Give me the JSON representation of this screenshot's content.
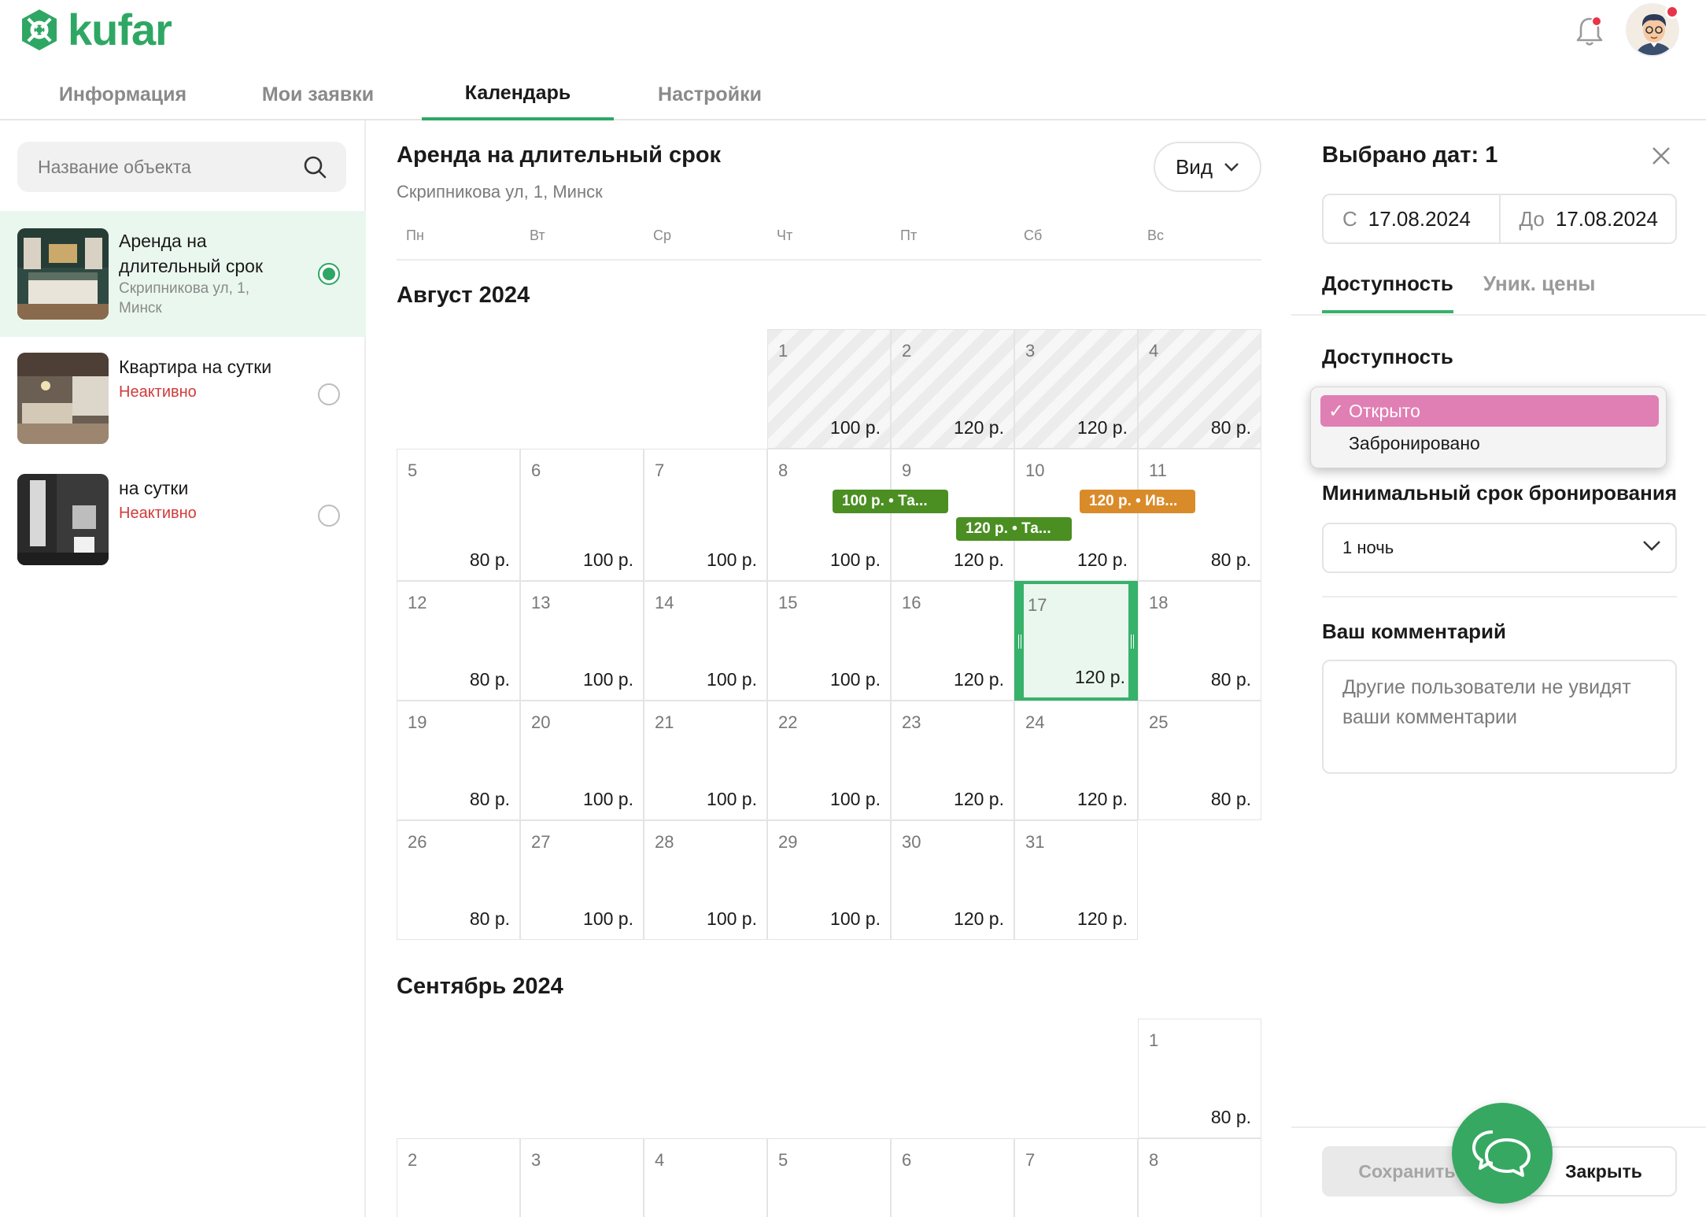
{
  "header": {
    "logo": "kufar",
    "tabs": [
      {
        "label": "Информация"
      },
      {
        "label": "Мои заявки"
      },
      {
        "label": "Календарь",
        "active": true
      },
      {
        "label": "Настройки"
      }
    ]
  },
  "sidebar": {
    "search_placeholder": "Название объекта",
    "objects": [
      {
        "title": "Аренда на длительный срок",
        "address": "Скрипникова ул, 1, Минск",
        "selected": true
      },
      {
        "title": "Квартира на сутки",
        "status": "Неактивно",
        "selected": false
      },
      {
        "title": "на сутки",
        "status": "Неактивно",
        "selected": false
      }
    ]
  },
  "calendar": {
    "object_title": "Аренда на длительный срок",
    "object_address": "Скрипникова ул, 1, Минск",
    "view_label": "Вид",
    "weekdays": [
      "Пн",
      "Вт",
      "Ср",
      "Чт",
      "Пт",
      "Сб",
      "Вс"
    ],
    "months": [
      {
        "title": "Август 2024",
        "start_col": 3,
        "days": [
          {
            "d": "1",
            "p": "100 р.",
            "past": true
          },
          {
            "d": "2",
            "p": "120 р.",
            "past": true
          },
          {
            "d": "3",
            "p": "120 р.",
            "past": true
          },
          {
            "d": "4",
            "p": "80 р.",
            "past": true
          },
          {
            "d": "5",
            "p": "80 р."
          },
          {
            "d": "6",
            "p": "100 р."
          },
          {
            "d": "7",
            "p": "100 р."
          },
          {
            "d": "8",
            "p": "100 р."
          },
          {
            "d": "9",
            "p": "120 р."
          },
          {
            "d": "10",
            "p": "120 р."
          },
          {
            "d": "11",
            "p": "80 р."
          },
          {
            "d": "12",
            "p": "80 р."
          },
          {
            "d": "13",
            "p": "100 р."
          },
          {
            "d": "14",
            "p": "100 р."
          },
          {
            "d": "15",
            "p": "100 р."
          },
          {
            "d": "16",
            "p": "120 р."
          },
          {
            "d": "17",
            "p": "120 р.",
            "picked": true
          },
          {
            "d": "18",
            "p": "80 р."
          },
          {
            "d": "19",
            "p": "80 р."
          },
          {
            "d": "20",
            "p": "100 р."
          },
          {
            "d": "21",
            "p": "100 р."
          },
          {
            "d": "22",
            "p": "100 р."
          },
          {
            "d": "23",
            "p": "120 р."
          },
          {
            "d": "24",
            "p": "120 р."
          },
          {
            "d": "25",
            "p": "80 р."
          },
          {
            "d": "26",
            "p": "80 р."
          },
          {
            "d": "27",
            "p": "100 р."
          },
          {
            "d": "28",
            "p": "100 р."
          },
          {
            "d": "29",
            "p": "100 р."
          },
          {
            "d": "30",
            "p": "120 р."
          },
          {
            "d": "31",
            "p": "120 р."
          }
        ],
        "bookings": [
          {
            "label": "100 р. • Та...",
            "color": "#4b8f23"
          },
          {
            "label": "120 р. • Та...",
            "color": "#4b8f23"
          },
          {
            "label": "120 р. • Ив...",
            "color": "#d98b2a"
          }
        ]
      },
      {
        "title": "Сентябрь 2024",
        "start_col": 6,
        "days": [
          {
            "d": "1",
            "p": "80 р."
          },
          {
            "d": "2",
            "p": ""
          },
          {
            "d": "3",
            "p": ""
          },
          {
            "d": "4",
            "p": ""
          },
          {
            "d": "5",
            "p": ""
          },
          {
            "d": "6",
            "p": ""
          },
          {
            "d": "7",
            "p": ""
          },
          {
            "d": "8",
            "p": ""
          }
        ]
      }
    ]
  },
  "panel": {
    "title": "Выбрано дат: 1",
    "from_label": "С",
    "from_date": "17.08.2024",
    "to_label": "До",
    "to_date": "17.08.2024",
    "tabs": [
      {
        "label": "Доступность",
        "active": true
      },
      {
        "label": "Уник. цены"
      }
    ],
    "availability_label": "Доступность",
    "availability_options": [
      {
        "label": "Открыто",
        "selected": true
      },
      {
        "label": "Забронировано"
      }
    ],
    "min_stay_label": "Минимальный срок бронирования",
    "min_stay_value": "1 ночь",
    "comment_label": "Ваш комментарий",
    "comment_placeholder": "Другие пользователи не увидят ваши комментарии",
    "save_label": "Сохранить",
    "close_label": "Закрыть"
  }
}
